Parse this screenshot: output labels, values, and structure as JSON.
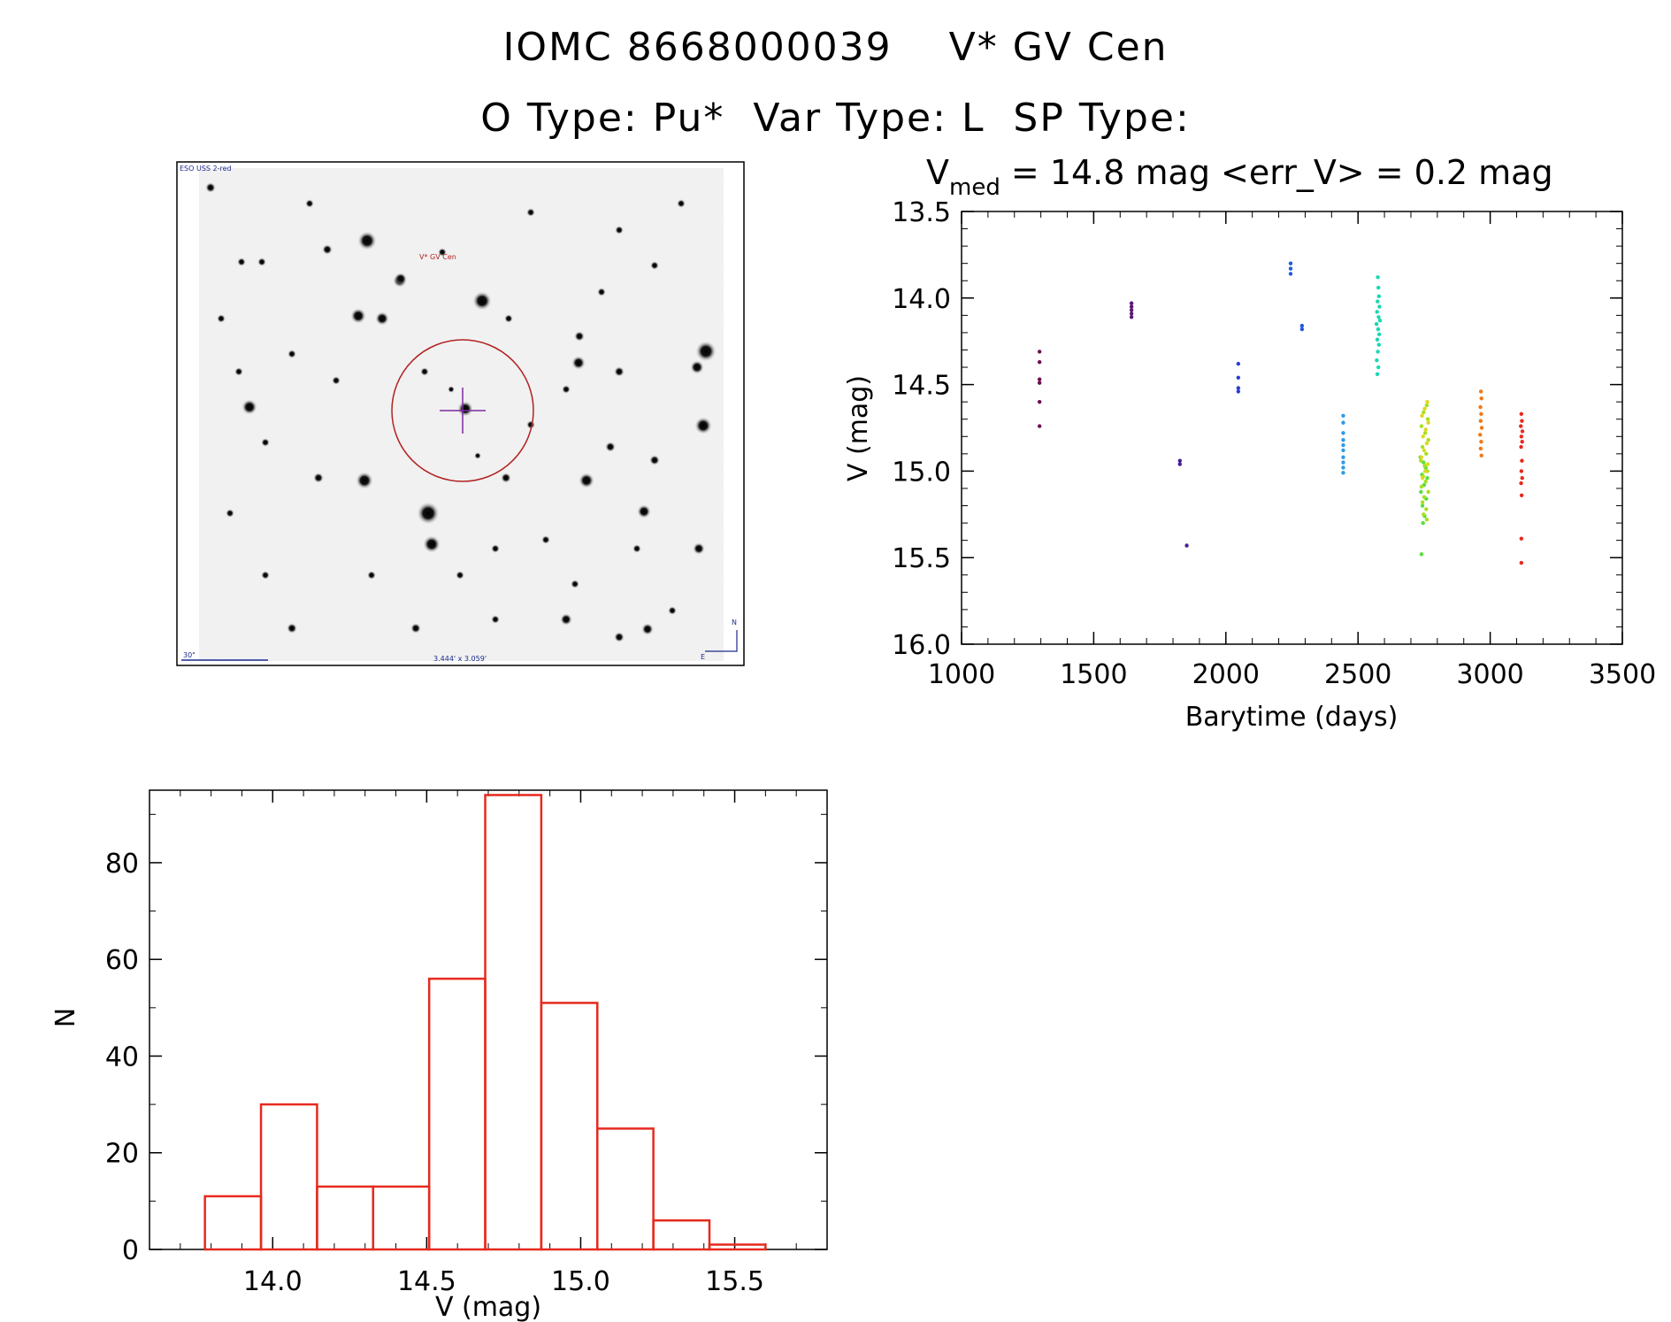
{
  "header": {
    "title_line1": "IOMC 8668000039    V* GV Cen",
    "title_line2": "O Type: Pu*  Var Type: L  SP Type:"
  },
  "finder": {
    "survey_label": "ESO USS 2-red",
    "target_label": "V* GV Cen",
    "scale_label": "30\"",
    "fov_label": "3.444' x 3.059'",
    "north_label": "N",
    "east_label": "E"
  },
  "chart_data": [
    {
      "type": "scatter",
      "title": "V_med = 14.8 mag <err_V> = 0.2 mag",
      "title_parts": {
        "v": "V",
        "sub": "med",
        "rest": " = 14.8 mag <err_V> = 0.2 mag"
      },
      "xlabel": "Barytime (days)",
      "ylabel": "V (mag)",
      "xlim": [
        1000,
        3500
      ],
      "ylim": [
        16.0,
        13.5
      ],
      "xticks": [
        1000,
        1500,
        2000,
        2500,
        3000,
        3500
      ],
      "yticks": [
        13.5,
        14.0,
        14.5,
        15.0,
        15.5,
        16.0
      ],
      "xtick_labels": [
        "1000",
        "1500",
        "2000",
        "2500",
        "3000",
        "3500"
      ],
      "ytick_labels": [
        "13.5",
        "14.0",
        "14.5",
        "15.0",
        "15.5",
        "16.0"
      ],
      "groups": [
        {
          "color": "#6b0f4f",
          "points": [
            [
              1295,
              14.31
            ],
            [
              1295,
              14.37
            ],
            [
              1295,
              14.47
            ],
            [
              1295,
              14.49
            ],
            [
              1295,
              14.6
            ],
            [
              1295,
              14.74
            ]
          ]
        },
        {
          "color": "#5b1a7a",
          "points": [
            [
              1643,
              14.03
            ],
            [
              1643,
              14.05
            ],
            [
              1643,
              14.07
            ],
            [
              1643,
              14.09
            ],
            [
              1643,
              14.11
            ]
          ]
        },
        {
          "color": "#4a1f8f",
          "points": [
            [
              1826,
              14.94
            ],
            [
              1826,
              14.96
            ],
            [
              1852,
              15.43
            ]
          ]
        },
        {
          "color": "#2a3fd0",
          "points": [
            [
              2047,
              14.38
            ],
            [
              2047,
              14.46
            ],
            [
              2047,
              14.52
            ],
            [
              2047,
              14.54
            ]
          ]
        },
        {
          "color": "#1f5ae0",
          "points": [
            [
              2245,
              13.8
            ],
            [
              2245,
              13.83
            ],
            [
              2245,
              13.86
            ],
            [
              2288,
              14.16
            ],
            [
              2288,
              14.18
            ]
          ]
        },
        {
          "color": "#2e9be6",
          "points": [
            [
              2444,
              14.68
            ],
            [
              2444,
              14.72
            ],
            [
              2444,
              14.78
            ],
            [
              2444,
              14.82
            ],
            [
              2444,
              14.85
            ],
            [
              2444,
              14.88
            ],
            [
              2444,
              14.92
            ],
            [
              2444,
              14.95
            ],
            [
              2444,
              14.98
            ],
            [
              2444,
              15.01
            ]
          ]
        },
        {
          "color": "#19d9b0",
          "points": [
            [
              2575,
              13.88
            ],
            [
              2577,
              13.94
            ],
            [
              2579,
              13.99
            ],
            [
              2574,
              14.02
            ],
            [
              2581,
              14.05
            ],
            [
              2572,
              14.08
            ],
            [
              2578,
              14.11
            ],
            [
              2583,
              14.13
            ],
            [
              2570,
              14.15
            ],
            [
              2576,
              14.18
            ],
            [
              2580,
              14.21
            ],
            [
              2573,
              14.24
            ],
            [
              2579,
              14.27
            ],
            [
              2575,
              14.31
            ],
            [
              2571,
              14.36
            ],
            [
              2577,
              14.4
            ],
            [
              2573,
              14.44
            ]
          ]
        },
        {
          "color": "#55e03a",
          "points": [
            [
              2740,
              15.48
            ],
            [
              2746,
              15.3
            ],
            [
              2752,
              15.26
            ],
            [
              2744,
              15.2
            ],
            [
              2758,
              15.16
            ],
            [
              2738,
              15.12
            ],
            [
              2750,
              15.08
            ],
            [
              2762,
              15.04
            ],
            [
              2742,
              15.02
            ],
            [
              2756,
              14.98
            ],
            [
              2748,
              14.95
            ],
            [
              2736,
              14.92
            ]
          ]
        },
        {
          "color": "#a6e01e",
          "points": [
            [
              2760,
              14.62
            ],
            [
              2748,
              14.66
            ],
            [
              2764,
              14.7
            ],
            [
              2740,
              14.74
            ],
            [
              2754,
              14.78
            ],
            [
              2766,
              14.82
            ],
            [
              2744,
              14.86
            ],
            [
              2758,
              14.9
            ],
            [
              2738,
              14.94
            ],
            [
              2752,
              14.97
            ],
            [
              2762,
              15.0
            ],
            [
              2746,
              15.03
            ],
            [
              2756,
              15.06
            ],
            [
              2740,
              15.09
            ],
            [
              2766,
              15.12
            ],
            [
              2750,
              15.15
            ],
            [
              2744,
              15.18
            ],
            [
              2758,
              15.22
            ],
            [
              2748,
              15.25
            ],
            [
              2760,
              15.28
            ]
          ]
        },
        {
          "color": "#e0d81e",
          "points": [
            [
              2762,
              14.6
            ],
            [
              2752,
              14.64
            ],
            [
              2742,
              14.68
            ],
            [
              2766,
              14.72
            ],
            [
              2756,
              14.76
            ],
            [
              2746,
              14.8
            ],
            [
              2760,
              14.84
            ],
            [
              2750,
              14.88
            ],
            [
              2740,
              14.92
            ],
            [
              2764,
              14.96
            ],
            [
              2754,
              15.0
            ],
            [
              2744,
              15.04
            ]
          ]
        },
        {
          "color": "#f07818",
          "points": [
            [
              2965,
              14.54
            ],
            [
              2967,
              14.58
            ],
            [
              2963,
              14.63
            ],
            [
              2966,
              14.67
            ],
            [
              2964,
              14.71
            ],
            [
              2968,
              14.75
            ],
            [
              2962,
              14.79
            ],
            [
              2966,
              14.83
            ],
            [
              2964,
              14.87
            ],
            [
              2967,
              14.91
            ]
          ]
        },
        {
          "color": "#e62a1e",
          "points": [
            [
              3118,
              14.67
            ],
            [
              3120,
              14.71
            ],
            [
              3116,
              14.74
            ],
            [
              3122,
              14.77
            ],
            [
              3118,
              14.8
            ],
            [
              3121,
              14.83
            ],
            [
              3117,
              14.86
            ],
            [
              3120,
              14.94
            ],
            [
              3118,
              15.0
            ],
            [
              3121,
              15.04
            ],
            [
              3117,
              15.07
            ],
            [
              3119,
              15.14
            ],
            [
              3118,
              15.39
            ],
            [
              3118,
              15.53
            ]
          ]
        }
      ]
    },
    {
      "type": "bar",
      "style": "step-histogram",
      "color": "#e62a1e",
      "title": "",
      "xlabel": "V (mag)",
      "ylabel": "N",
      "xlim": [
        13.6,
        15.8
      ],
      "ylim": [
        0,
        95
      ],
      "xticks": [
        14.0,
        14.5,
        15.0,
        15.5
      ],
      "yticks": [
        0,
        20,
        40,
        60,
        80
      ],
      "xtick_labels": [
        "14.0",
        "14.5",
        "15.0",
        "15.5"
      ],
      "ytick_labels": [
        "0",
        "20",
        "40",
        "60",
        "80"
      ],
      "bin_width": 0.182,
      "bin_starts": [
        13.78,
        13.962,
        14.144,
        14.326,
        14.508,
        14.69,
        14.872,
        15.054,
        15.236,
        15.418,
        15.6
      ],
      "values": [
        11,
        30,
        13,
        13,
        56,
        94,
        51,
        25,
        6,
        1,
        0
      ]
    }
  ]
}
